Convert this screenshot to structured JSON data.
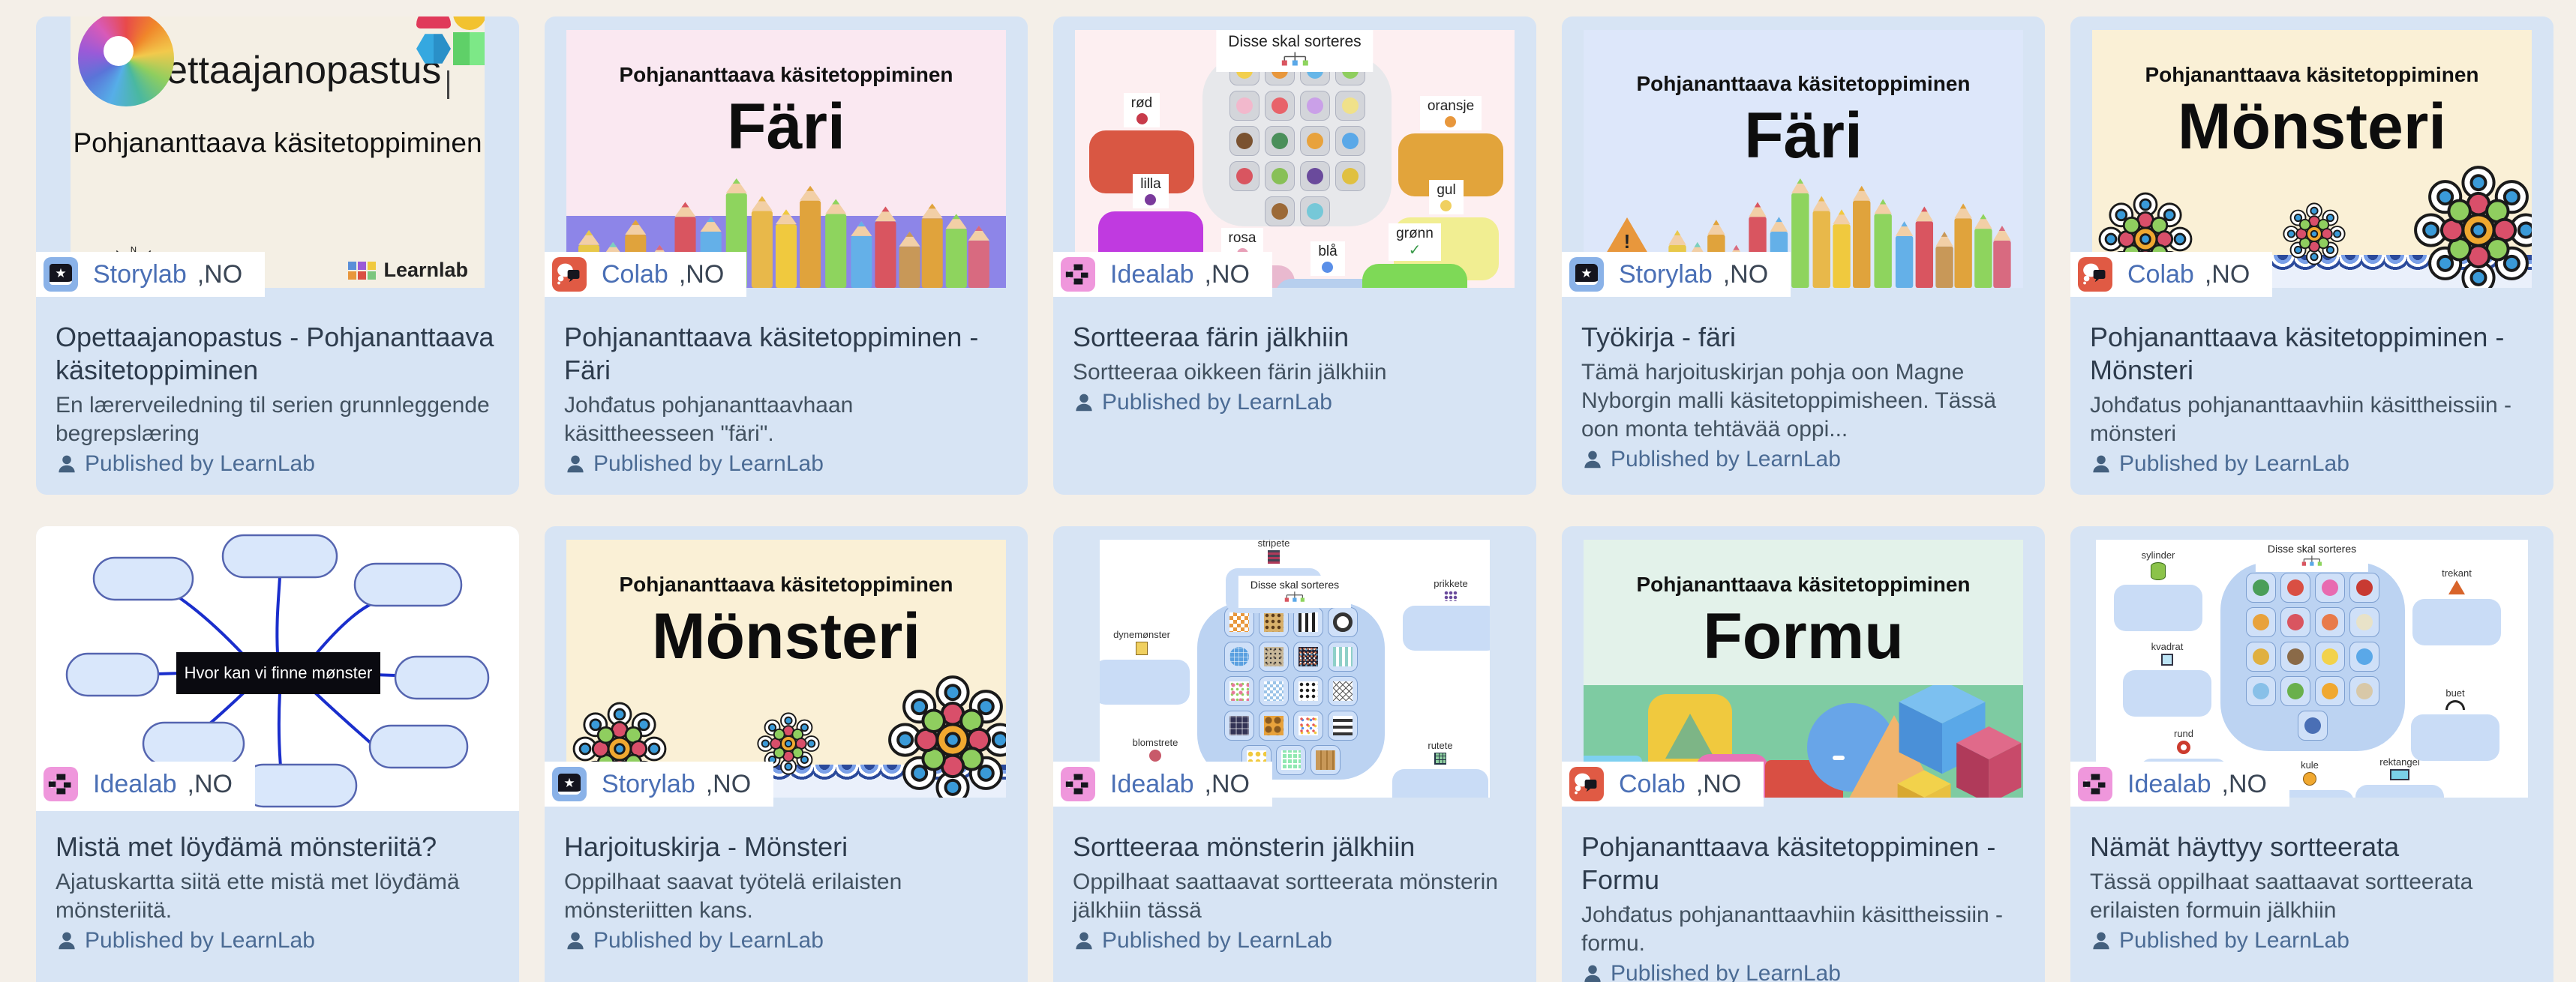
{
  "colors": {
    "page_bg": "#f4efe8",
    "card_bg": "#d7e4f4",
    "storylab_icon_bg": "#8ab2e8",
    "colab_icon_bg": "#e05a44",
    "idealab_icon_bg": "#ef97dc",
    "app_label": "#4a6fb5",
    "title_text": "#2d3b4c",
    "published_text": "#4b6b94"
  },
  "cards": [
    {
      "app": "Storylab",
      "lang": ",NO",
      "title": "Opettaajanopastus - Pohjananttaava käsitetoppiminen",
      "description": "En lærerveiledning til serien grunnleggende begrepslæring",
      "published": "Published by LearnLab",
      "thumb": {
        "heading": "Opettaajanopastus",
        "subheading": "Pohjananttaava käsitetoppiminen",
        "brand": "Learnlab",
        "compass_letter": "N"
      }
    },
    {
      "app": "Colab",
      "lang": ",NO",
      "title": "Pohjananttaava käsitetoppiminen - Färi",
      "description": "Johđatus pohjananttaavhaan käsittheesseen \"färi\".",
      "published": "Published by LearnLab",
      "thumb": {
        "series": "Pohjananttaava käsitetoppiminen",
        "word": "Färi"
      }
    },
    {
      "app": "Idealab",
      "lang": ",NO",
      "title": "Sortteeraa färin jälkhiin",
      "description": "Sortteeraa oikkeen färin jälkhiin",
      "published": "Published by LearnLab",
      "thumb": {
        "sorter": "Disse skal sorteres",
        "labels": [
          "rød",
          "oransje",
          "lilla",
          "gul",
          "rosa",
          "blå",
          "grønn"
        ],
        "label_colors": [
          "#d95743",
          "#e2a43b",
          "#c03ae0",
          "#f1ee92",
          "#e9b9cf",
          "#b7cfee",
          "#7ed957"
        ],
        "label_icon_colors": [
          "#c83a4a",
          "#e8973c",
          "#7a3a9c",
          "#f0d060",
          "#e8a0b8",
          "#5a8fe8",
          "#3a9a4a"
        ],
        "tile_colors": [
          "#f2cf4e",
          "#e8973c",
          "#66b6e8",
          "#8fce5f",
          "#f2b8cc",
          "#e8636a",
          "#caa0e8",
          "#f0e18a",
          "#7a5230",
          "#4a8f5a",
          "#e8a23c",
          "#5aa8e8",
          "#d95560",
          "#88c057",
          "#6a4a9c",
          "#e0c040",
          "#9c6a38",
          "#76c8d8"
        ]
      }
    },
    {
      "app": "Storylab",
      "lang": ",NO",
      "title": "Työkirja - färi",
      "description": "Tämä harjoituskirjan pohja oon Magne Nyborgin malli käsitetoppimisheen. Tässä oon monta tehtävää oppi...",
      "published": "Published by LearnLab",
      "thumb": {
        "series": "Pohjananttaava käsitetoppiminen",
        "word": "Färi",
        "warning": "!"
      }
    },
    {
      "app": "Colab",
      "lang": ",NO",
      "title": "Pohjananttaava käsitetoppiminen - Mönsteri",
      "description": "Johđatus pohjananttaavhiin käsittheissiin - mönsteri",
      "published": "Published by LearnLab",
      "thumb": {
        "series": "Pohjananttaava käsitetoppiminen",
        "word": "Mönsteri"
      }
    },
    {
      "app": "Idealab",
      "lang": ",NO",
      "title": "Mistä met löyđämä mönsteriitä?",
      "description": "Ajatuskartta siitä ette mistä met löyđämä mönsteriitä.",
      "published": "Published by LearnLab",
      "thumb": {
        "center": "Hvor kan vi finne mønster"
      }
    },
    {
      "app": "Storylab",
      "lang": ",NO",
      "title": "Harjoituskirja - Mönsteri",
      "description": "Oppilhaat saavat työtelä erilaisten mönsteriitten kans.",
      "published": "Published by LearnLab",
      "thumb": {
        "series": "Pohjananttaava käsitetoppiminen",
        "word": "Mönsteri"
      }
    },
    {
      "app": "Idealab",
      "lang": ",NO",
      "title": "Sortteeraa mönsterin jälkhiin",
      "description": "Oppilhaat saattaavat sortteerata mönsterin jälkhiin tässä",
      "published": "Published by LearnLab",
      "thumb": {
        "sorter": "Disse skal sorteres",
        "labels": [
          "stripete",
          "prikkete",
          "dynemønster",
          "blomstrete",
          "rutete"
        ],
        "patterns": [
          "grid-orange",
          "leopard",
          "stripe-v",
          "ring",
          "globe",
          "speckle",
          "noise",
          "tee",
          "floral",
          "gingham",
          "dots-dark",
          "net",
          "tartan",
          "giraffe",
          "confetti",
          "stripe-h",
          "dots-gold",
          "grid-green",
          "wood"
        ]
      }
    },
    {
      "app": "Colab",
      "lang": ",NO",
      "title": "Pohjananttaava käsitetoppiminen - Formu",
      "description": "Johđatus pohjananttaavhiin käsittheissiin - formu.",
      "published": "Published by LearnLab",
      "thumb": {
        "series": "Pohjananttaava käsitetoppiminen",
        "word": "Formu"
      }
    },
    {
      "app": "Idealab",
      "lang": ",NO",
      "title": "Nämät häyttyy sortteerata",
      "description": "Tässä oppilhaat saattaavat sortteerata erilaisten formuin jälkhiin",
      "published": "Published by LearnLab",
      "thumb": {
        "sorter": "Disse skal sorteres",
        "labels": [
          "sylinder",
          "kvadrat",
          "rund",
          "kule",
          "rektangel",
          "trekant",
          "buet"
        ],
        "tile_colors": [
          "#4a9e58",
          "#d94f43",
          "#e86ab0",
          "#c83a32",
          "#e8a23c",
          "#d95560",
          "#e87a4a",
          "#e8e2c8",
          "#e0b040",
          "#8a6a48",
          "#f2d24b",
          "#5aa8e8",
          "#88c0e8",
          "#6ab04c",
          "#f0a830",
          "#d8c8a8",
          "#4a6fb5"
        ]
      }
    }
  ]
}
